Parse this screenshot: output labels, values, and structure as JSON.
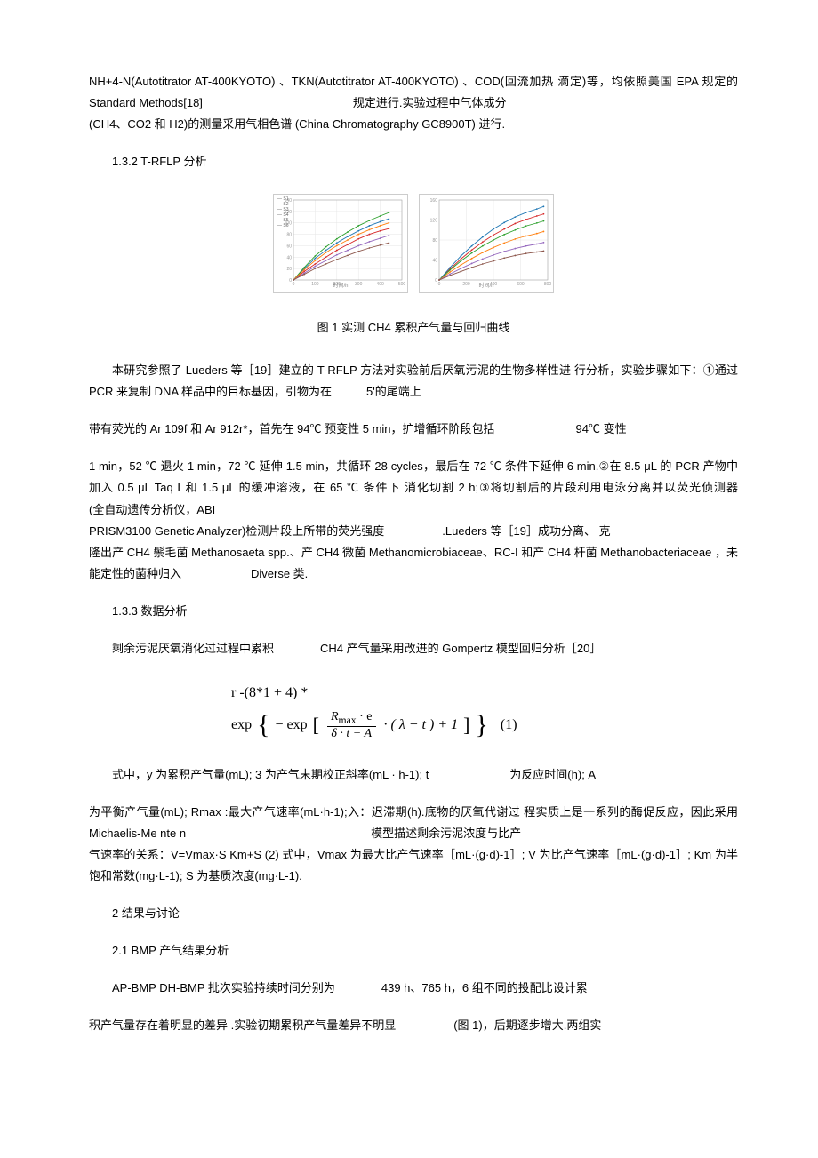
{
  "para1": "NH+4-N(Autotitrator AT-400KYOTO) 、TKN(Autotitrator AT-400KYOTO) 、COD(回流加热 滴定)等，均依照美国 EPA 规定的 Standard Methods[18]　　　　　　　　　　　　　规定进行.实验过程中气体成分",
  "para1b": "(CH4、CO2 和 H2)的测量采用气相色谱 (China Chromatography GC8900T) 进行.",
  "para2": "1.3.2 T-RFLP 分析",
  "fig_caption": "图 1 实测 CH4 累积产气量与回归曲线",
  "para3": "本研究参照了 Lueders 等［19］建立的 T-RFLP 方法对实验前后厌氧污泥的生物多样性进 行分析，实验步骤如下：①通过　　　　　　　　　PCR 来复制 DNA 样品中的目标基因，引物为在　　　5'的尾端上",
  "para3b": "带有荧光的 Ar 109f 和 Ar 912r*，首先在 94℃ 预变性 5 min，扩增循环阶段包括　　　　　　　94℃ 变性",
  "para3c": "1 min，52 ℃ 退火 1 min，72 ℃ 延伸 1.5 min，共循环 28 cycles，最后在 72 ℃ 条件下延伸 6 min.②在 8.5 μL 的 PCR 产物中加入 0.5 μL Taq Ⅰ 和 1.5 μL 的缓冲溶液，在 65 ℃ 条件下 消化切割 2 h;③将切割后的片段利用电泳分离并以荧光侦测器　　　　　　　　　　　　　　　　　　　　　　　　　　　(全自动遗传分析仪，ABI",
  "para3d": "PRISM3100 Genetic Analyzer)检测片段上所带的荧光强度　　　　　.Lueders 等［19］成功分离、 克",
  "para3e": "隆出产 CH4 鬃毛菌 Methanosaeta spp.、产 CH4 微菌 Methanomicrobiaceae、RC-I 和产 CH4 杆菌 Methanobacteriaceae ，未能定性的菌种归入　　　　　　Diverse 类.",
  "para4": "1.3.3 数据分析",
  "para5": "剩余污泥厌氧消化过过程中累积　　　　CH4 产气量采用改进的 Gompertz 模型回归分析［20］",
  "formula_line1": "r -(8*1 + 4) *",
  "formula_exp1": "exp",
  "formula_exp2": "− exp",
  "formula_num": "R",
  "formula_num_sub": "max",
  "formula_num_dot": " · e",
  "formula_den": "δ · t + A",
  "formula_tail": " · ( λ − t )  + 1",
  "formula_eqnum": "(1)",
  "para6": "式中，y 为累积产气量(mL); 3 为产气末期校正斜率(mL · h-1); t　　　　　　　为反应时间(h); A",
  "para6b": "为平衡产气量(mL); Rmax :最大产气速率(mL·h-1);入：迟滞期(h).底物的厌氧代谢过 程实质上是一系列的酶促反应，因此采用 Michaelis-Me nte n　　　　　　　　　　　　　　　　模型描述剩余污泥浓度与比产",
  "para6c": "气速率的关系：V=Vmax·S Km+S (2) 式中，Vmax 为最大比产气速率［mL·(g·d)-1］; V 为比产气速率［mL·(g·d)-1］; Km 为半饱和常数(mg·L-1); S 为基质浓度(mg·L-1).",
  "para7": "2 结果与讨论",
  "para8": "2.1 BMP 产气结果分析",
  "para9": "AP-BMP DH-BMP 批次实验持续时间分别为　　　　439 h、765 h，6 组不同的投配比设计累",
  "para10": "积产气量存在着明显的差异 .实验初期累积产气量差异不明显　　　　　(图 1)，后期逐步增大.两组实",
  "chart1": {
    "type": "line",
    "background_color": "#ffffff",
    "grid_color": "#e6e6e6",
    "xlim": [
      0,
      500
    ],
    "ylim": [
      0,
      140
    ],
    "x_ticks": [
      0,
      100,
      200,
      300,
      400,
      500
    ],
    "y_ticks": [
      0,
      20,
      40,
      60,
      80,
      100,
      120,
      140
    ],
    "series_colors": [
      "#d62728",
      "#1f77b4",
      "#2ca02c",
      "#ff7f0e",
      "#9467bd",
      "#8c564b"
    ],
    "series": [
      [
        [
          0,
          0
        ],
        [
          50,
          15
        ],
        [
          100,
          28
        ],
        [
          150,
          40
        ],
        [
          200,
          52
        ],
        [
          250,
          62
        ],
        [
          300,
          72
        ],
        [
          350,
          80
        ],
        [
          400,
          86
        ],
        [
          440,
          90
        ]
      ],
      [
        [
          0,
          0
        ],
        [
          50,
          20
        ],
        [
          100,
          38
        ],
        [
          150,
          52
        ],
        [
          200,
          65
        ],
        [
          250,
          76
        ],
        [
          300,
          86
        ],
        [
          350,
          95
        ],
        [
          400,
          102
        ],
        [
          440,
          107
        ]
      ],
      [
        [
          0,
          0
        ],
        [
          50,
          22
        ],
        [
          100,
          42
        ],
        [
          150,
          58
        ],
        [
          200,
          72
        ],
        [
          250,
          84
        ],
        [
          300,
          95
        ],
        [
          350,
          104
        ],
        [
          400,
          112
        ],
        [
          440,
          118
        ]
      ],
      [
        [
          0,
          0
        ],
        [
          50,
          18
        ],
        [
          100,
          34
        ],
        [
          150,
          48
        ],
        [
          200,
          60
        ],
        [
          250,
          70
        ],
        [
          300,
          80
        ],
        [
          350,
          88
        ],
        [
          400,
          95
        ],
        [
          440,
          100
        ]
      ],
      [
        [
          0,
          0
        ],
        [
          50,
          12
        ],
        [
          100,
          24
        ],
        [
          150,
          34
        ],
        [
          200,
          44
        ],
        [
          250,
          52
        ],
        [
          300,
          60
        ],
        [
          350,
          67
        ],
        [
          400,
          73
        ],
        [
          440,
          78
        ]
      ],
      [
        [
          0,
          0
        ],
        [
          50,
          10
        ],
        [
          100,
          20
        ],
        [
          150,
          28
        ],
        [
          200,
          36
        ],
        [
          250,
          43
        ],
        [
          300,
          50
        ],
        [
          350,
          56
        ],
        [
          400,
          61
        ],
        [
          440,
          65
        ]
      ]
    ]
  },
  "chart2": {
    "type": "line",
    "background_color": "#ffffff",
    "grid_color": "#e6e6e6",
    "xlim": [
      0,
      800
    ],
    "ylim": [
      0,
      160
    ],
    "x_ticks": [
      0,
      200,
      400,
      600,
      800
    ],
    "y_ticks": [
      0,
      40,
      80,
      120,
      160
    ],
    "series_colors": [
      "#d62728",
      "#1f77b4",
      "#2ca02c",
      "#ff7f0e",
      "#9467bd",
      "#8c564b"
    ],
    "series": [
      [
        [
          0,
          0
        ],
        [
          80,
          22
        ],
        [
          160,
          42
        ],
        [
          240,
          60
        ],
        [
          320,
          76
        ],
        [
          400,
          90
        ],
        [
          480,
          102
        ],
        [
          560,
          113
        ],
        [
          640,
          121
        ],
        [
          720,
          128
        ],
        [
          770,
          132
        ]
      ],
      [
        [
          0,
          0
        ],
        [
          80,
          25
        ],
        [
          160,
          48
        ],
        [
          240,
          68
        ],
        [
          320,
          86
        ],
        [
          400,
          102
        ],
        [
          480,
          115
        ],
        [
          560,
          126
        ],
        [
          640,
          135
        ],
        [
          720,
          142
        ],
        [
          770,
          147
        ]
      ],
      [
        [
          0,
          0
        ],
        [
          80,
          20
        ],
        [
          160,
          38
        ],
        [
          240,
          54
        ],
        [
          320,
          68
        ],
        [
          400,
          80
        ],
        [
          480,
          91
        ],
        [
          560,
          100
        ],
        [
          640,
          108
        ],
        [
          720,
          114
        ],
        [
          770,
          118
        ]
      ],
      [
        [
          0,
          0
        ],
        [
          80,
          16
        ],
        [
          160,
          30
        ],
        [
          240,
          43
        ],
        [
          320,
          55
        ],
        [
          400,
          65
        ],
        [
          480,
          74
        ],
        [
          560,
          82
        ],
        [
          640,
          88
        ],
        [
          720,
          93
        ],
        [
          770,
          97
        ]
      ],
      [
        [
          0,
          0
        ],
        [
          80,
          12
        ],
        [
          160,
          23
        ],
        [
          240,
          33
        ],
        [
          320,
          42
        ],
        [
          400,
          50
        ],
        [
          480,
          57
        ],
        [
          560,
          63
        ],
        [
          640,
          68
        ],
        [
          720,
          72
        ],
        [
          770,
          75
        ]
      ],
      [
        [
          0,
          0
        ],
        [
          80,
          9
        ],
        [
          160,
          17
        ],
        [
          240,
          25
        ],
        [
          320,
          32
        ],
        [
          400,
          38
        ],
        [
          480,
          44
        ],
        [
          560,
          49
        ],
        [
          640,
          53
        ],
        [
          720,
          56
        ],
        [
          770,
          58
        ]
      ]
    ]
  }
}
